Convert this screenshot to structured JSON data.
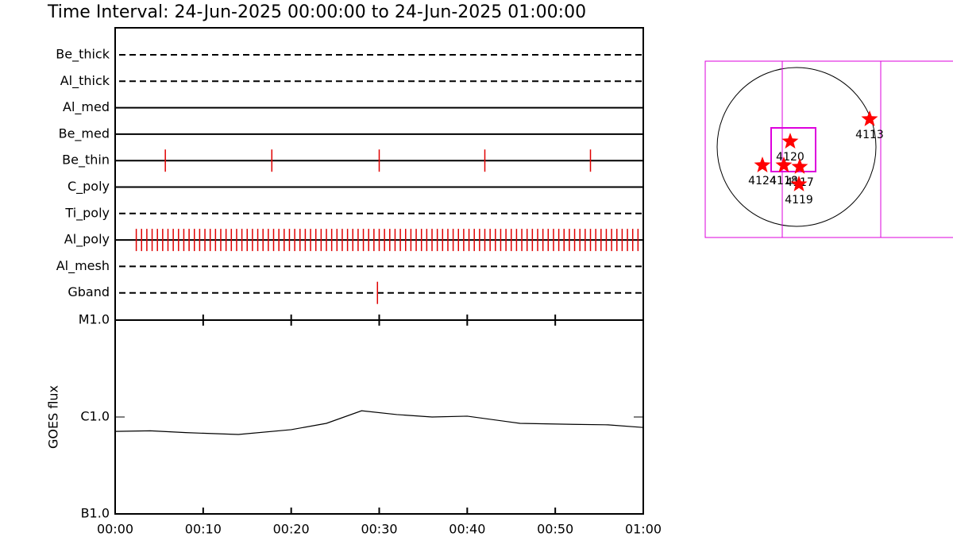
{
  "title": "Time Interval: 24-Jun-2025 00:00:00 to 24-Jun-2025 01:00:00",
  "chart_data": [
    {
      "type": "timeline",
      "xlim": [
        0,
        60
      ],
      "event_color": "#e00000",
      "rows": [
        {
          "name": "Be_thick",
          "style": "dashed",
          "events": []
        },
        {
          "name": "Al_thick",
          "style": "dashed",
          "events": []
        },
        {
          "name": "Al_med",
          "style": "solid",
          "events": []
        },
        {
          "name": "Be_med",
          "style": "solid",
          "events": []
        },
        {
          "name": "Be_thin",
          "style": "solid",
          "events": [
            5.7,
            17.8,
            30,
            42,
            54
          ]
        },
        {
          "name": "C_poly",
          "style": "solid",
          "events": []
        },
        {
          "name": "Ti_poly",
          "style": "dashed",
          "events": []
        },
        {
          "name": "Al_poly",
          "style": "solid",
          "events": [
            2.4,
            3,
            3.6,
            4.2,
            4.8,
            5.4,
            6,
            6.6,
            7.2,
            7.8,
            8.4,
            9,
            9.6,
            10.2,
            10.8,
            11.4,
            12,
            12.6,
            13.2,
            13.8,
            14.4,
            15,
            15.6,
            16.2,
            16.8,
            17.4,
            18,
            18.6,
            19.2,
            19.8,
            20.4,
            21,
            21.6,
            22.2,
            22.8,
            23.4,
            24,
            24.6,
            25.2,
            25.8,
            26.4,
            27,
            27.6,
            28.2,
            28.8,
            29.4,
            30,
            30.6,
            31.2,
            31.8,
            32.4,
            33,
            33.6,
            34.2,
            34.8,
            35.4,
            36,
            36.6,
            37.2,
            37.8,
            38.4,
            39,
            39.6,
            40.2,
            40.8,
            41.4,
            42,
            42.6,
            43.2,
            43.8,
            44.4,
            45,
            45.6,
            46.2,
            46.8,
            47.4,
            48,
            48.6,
            49.2,
            49.8,
            50.4,
            51,
            51.6,
            52.2,
            52.8,
            53.4,
            54,
            54.6,
            55.2,
            55.8,
            56.4,
            57,
            57.6,
            58.2,
            58.8,
            59.4
          ]
        },
        {
          "name": "Al_mesh",
          "style": "dashed",
          "events": []
        },
        {
          "name": "Gband",
          "style": "dashed",
          "events": [
            29.8
          ]
        }
      ]
    },
    {
      "type": "line",
      "y_label": "GOES flux",
      "log_y": true,
      "color": "#000000",
      "x": [
        0,
        4,
        8,
        14,
        20,
        24,
        28,
        32,
        36,
        40,
        46,
        52,
        56,
        60
      ],
      "values": [
        7.1e-07,
        7.2e-07,
        6.9e-07,
        6.6e-07,
        7.4e-07,
        8.6e-07,
        1.16e-06,
        1.06e-06,
        1e-06,
        1.02e-06,
        8.6e-07,
        8.4e-07,
        8.3e-07,
        7.8e-07
      ],
      "xlim": [
        0,
        60
      ],
      "xticks": [
        {
          "value": 0,
          "label": "00:00"
        },
        {
          "value": 10,
          "label": "00:10"
        },
        {
          "value": 20,
          "label": "00:20"
        },
        {
          "value": 30,
          "label": "00:30"
        },
        {
          "value": 40,
          "label": "00:40"
        },
        {
          "value": 50,
          "label": "00:50"
        },
        {
          "value": 60,
          "label": "01:00"
        }
      ],
      "ylim": [
        1e-07,
        1e-05
      ],
      "yticks": [
        {
          "value": 1e-07,
          "label": "B1.0"
        },
        {
          "value": 1e-06,
          "label": "C1.0"
        },
        {
          "value": 1e-05,
          "label": "M1.0"
        }
      ]
    },
    {
      "type": "scatter",
      "color": "#ff0000",
      "labels": [
        "4113",
        "4120",
        "4124",
        "4118",
        "4117",
        "4119"
      ],
      "x": [
        883,
        -77,
        -413,
        -154,
        38,
        29
      ],
      "y": [
        336,
        67,
        -221,
        -221,
        -240,
        -451
      ],
      "xlim": [
        -1104,
        1555
      ],
      "ylim": [
        -1094,
        1037
      ]
    }
  ]
}
